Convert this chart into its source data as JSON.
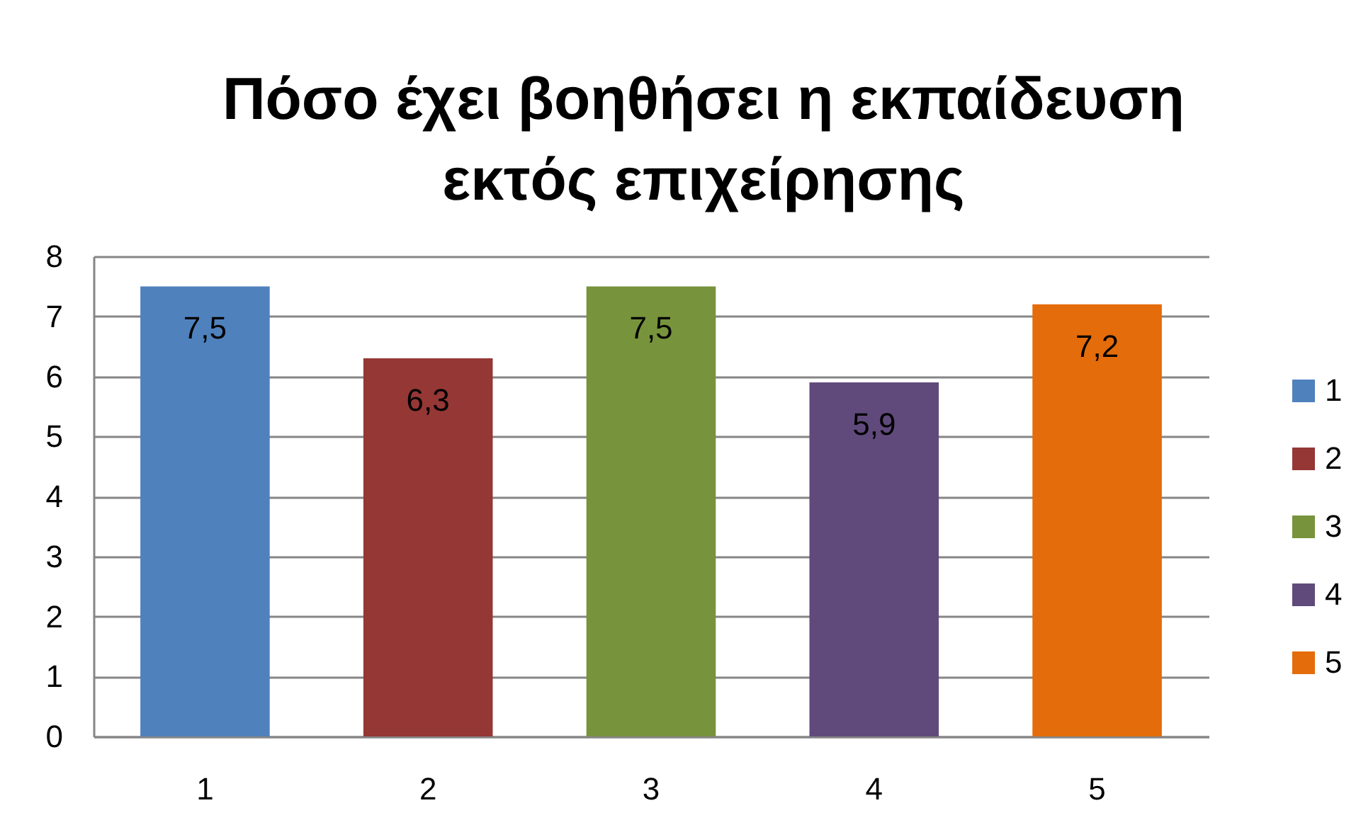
{
  "chart_data": {
    "type": "bar",
    "title": "Πόσο έχει βοηθήσει η εκπαίδευση\nεκτός  επιχείρησης",
    "categories": [
      "1",
      "2",
      "3",
      "4",
      "5"
    ],
    "stacked": true,
    "series": [
      {
        "name": "1",
        "color": "#4f81bd",
        "values": [
          7.5,
          null,
          null,
          null,
          null
        ],
        "value_labels": [
          "7,5",
          null,
          null,
          null,
          null
        ]
      },
      {
        "name": "2",
        "color": "#953735",
        "values": [
          null,
          6.3,
          null,
          null,
          null
        ],
        "value_labels": [
          null,
          "6,3",
          null,
          null,
          null
        ]
      },
      {
        "name": "3",
        "color": "#77933c",
        "values": [
          null,
          null,
          7.5,
          null,
          null
        ],
        "value_labels": [
          null,
          null,
          "7,5",
          null,
          null
        ]
      },
      {
        "name": "4",
        "color": "#604a7b",
        "values": [
          null,
          null,
          null,
          5.9,
          null
        ],
        "value_labels": [
          null,
          null,
          null,
          "5,9",
          null
        ]
      },
      {
        "name": "5",
        "color": "#e46c0a",
        "values": [
          null,
          null,
          null,
          null,
          7.2
        ],
        "value_labels": [
          null,
          null,
          null,
          null,
          "7,2"
        ]
      }
    ],
    "ylim": [
      0,
      8
    ],
    "yticks": [
      0,
      1,
      2,
      3,
      4,
      5,
      6,
      7,
      8
    ],
    "grid": "y",
    "legend": "right"
  }
}
